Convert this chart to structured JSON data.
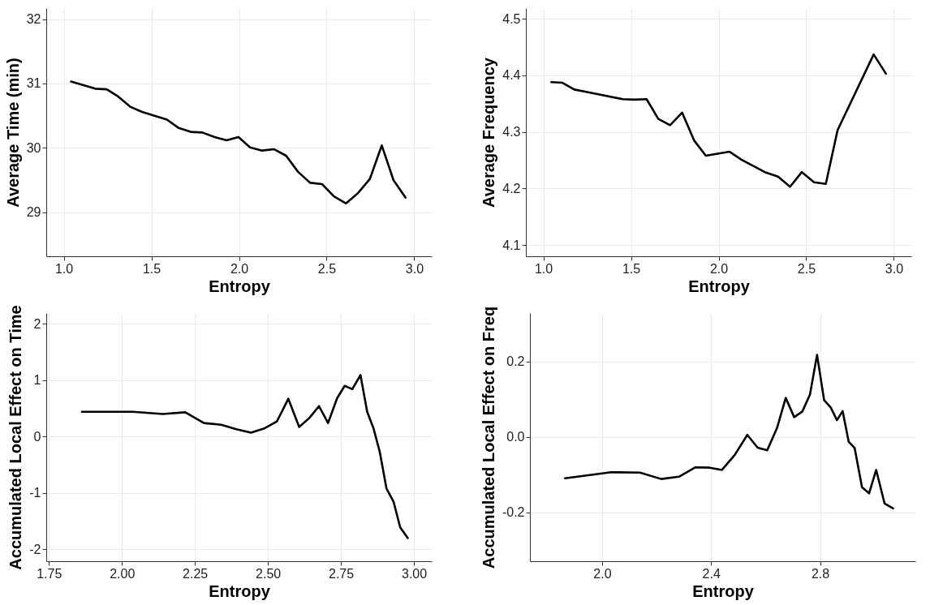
{
  "chart_data": [
    {
      "type": "line",
      "xlabel": "Entropy",
      "ylabel": "Average Time (min)",
      "grid": true,
      "xlim": [
        0.9,
        3.1
      ],
      "xticks": [
        {
          "value": 1,
          "label": "1.0"
        },
        1.5,
        {
          "value": 2,
          "label": "2.0"
        },
        2.5,
        {
          "value": 3,
          "label": "3.0"
        }
      ],
      "ylim": [
        28.32,
        32.17
      ],
      "yticks": [
        29,
        30,
        31,
        32
      ],
      "x": [
        1.041,
        1.179,
        1.245,
        1.31,
        1.379,
        1.447,
        1.518,
        1.589,
        1.656,
        1.724,
        1.791,
        1.861,
        1.929,
        1.997,
        2.063,
        2.131,
        2.201,
        2.269,
        2.337,
        2.406,
        2.474,
        2.542,
        2.611,
        2.679,
        2.747,
        2.815,
        2.882,
        2.951
      ],
      "series": [
        {
          "color": "#000000",
          "values": [
            31.03,
            30.92,
            30.91,
            30.8,
            30.64,
            30.56,
            30.5,
            30.44,
            30.31,
            30.25,
            30.24,
            30.17,
            30.12,
            30.17,
            30.01,
            29.96,
            29.98,
            29.88,
            29.63,
            29.46,
            29.44,
            29.25,
            29.14,
            29.3,
            29.52,
            30.04,
            29.5,
            29.23
          ]
        }
      ]
    },
    {
      "type": "line",
      "xlabel": "Entropy",
      "ylabel": "Average Frequency",
      "grid": true,
      "xlim": [
        0.9,
        3.1
      ],
      "xticks": [
        {
          "value": 1,
          "label": "1.0"
        },
        1.5,
        {
          "value": 2,
          "label": "2.0"
        },
        2.5,
        {
          "value": 3,
          "label": "3.0"
        }
      ],
      "ylim": [
        4.08,
        4.519
      ],
      "yticks": [
        4.1,
        4.2,
        4.3,
        4.4,
        4.5
      ],
      "x": [
        1.045,
        1.109,
        1.176,
        1.244,
        1.452,
        1.52,
        1.589,
        1.656,
        1.723,
        1.792,
        1.86,
        1.927,
        2.063,
        2.13,
        2.27,
        2.339,
        2.408,
        2.475,
        2.545,
        2.612,
        2.679,
        2.885,
        2.955
      ],
      "series": [
        {
          "color": "#000000",
          "values": [
            4.388,
            4.387,
            4.375,
            4.371,
            4.358,
            4.357,
            4.358,
            4.323,
            4.312,
            4.334,
            4.285,
            4.258,
            4.265,
            4.251,
            4.228,
            4.221,
            4.203,
            4.229,
            4.211,
            4.208,
            4.303,
            4.437,
            4.403
          ]
        }
      ]
    },
    {
      "type": "line",
      "xlabel": "Entropy",
      "ylabel": "Accumulated Local Effect on Time",
      "grid": true,
      "xlim": [
        1.741,
        3.061
      ],
      "xticks": [
        1.75,
        {
          "value": 2,
          "label": "2.00"
        },
        2.25,
        {
          "value": 2.5,
          "label": "2.50"
        },
        2.75,
        {
          "value": 3,
          "label": "3.00"
        }
      ],
      "ylim": [
        -2.21,
        2.19
      ],
      "yticks": [
        -2,
        -1,
        0,
        1,
        2
      ],
      "x": [
        1.863,
        2.038,
        2.14,
        2.217,
        2.281,
        2.34,
        2.392,
        2.442,
        2.486,
        2.531,
        2.57,
        2.607,
        2.642,
        2.675,
        2.706,
        2.737,
        2.763,
        2.789,
        2.817,
        2.84,
        2.862,
        2.883,
        2.906,
        2.93,
        2.953,
        2.979
      ],
      "series": [
        {
          "color": "#000000",
          "values": [
            0.44,
            0.44,
            0.4,
            0.43,
            0.24,
            0.21,
            0.13,
            0.07,
            0.14,
            0.27,
            0.67,
            0.17,
            0.33,
            0.54,
            0.24,
            0.68,
            0.9,
            0.84,
            1.09,
            0.44,
            0.14,
            -0.27,
            -0.92,
            -1.15,
            -1.61,
            -1.8
          ]
        }
      ]
    },
    {
      "type": "line",
      "xlabel": "Entropy",
      "ylabel": "Accumulated Local Effect on Freq",
      "grid": true,
      "xlim": [
        1.735,
        3.15
      ],
      "xticks": [
        {
          "value": 2,
          "label": "2.0"
        },
        2.4,
        2.8
      ],
      "ylim": [
        -0.33,
        0.328
      ],
      "yticks": [
        -0.2,
        {
          "value": 0,
          "label": "0.0"
        },
        0.2
      ],
      "x": [
        1.864,
        2.034,
        2.139,
        2.217,
        2.282,
        2.343,
        2.395,
        2.44,
        2.487,
        2.533,
        2.571,
        2.606,
        2.642,
        2.674,
        2.705,
        2.735,
        2.763,
        2.789,
        2.815,
        2.839,
        2.862,
        2.883,
        2.905,
        2.927,
        2.954,
        2.98,
        3.006,
        3.037,
        3.068
      ],
      "series": [
        {
          "color": "#000000",
          "values": [
            -0.11,
            -0.094,
            -0.095,
            -0.112,
            -0.106,
            -0.081,
            -0.082,
            -0.088,
            -0.048,
            0.005,
            -0.029,
            -0.036,
            0.023,
            0.103,
            0.052,
            0.067,
            0.112,
            0.217,
            0.097,
            0.078,
            0.044,
            0.068,
            -0.013,
            -0.03,
            -0.134,
            -0.15,
            -0.088,
            -0.177,
            -0.19
          ]
        }
      ]
    }
  ]
}
